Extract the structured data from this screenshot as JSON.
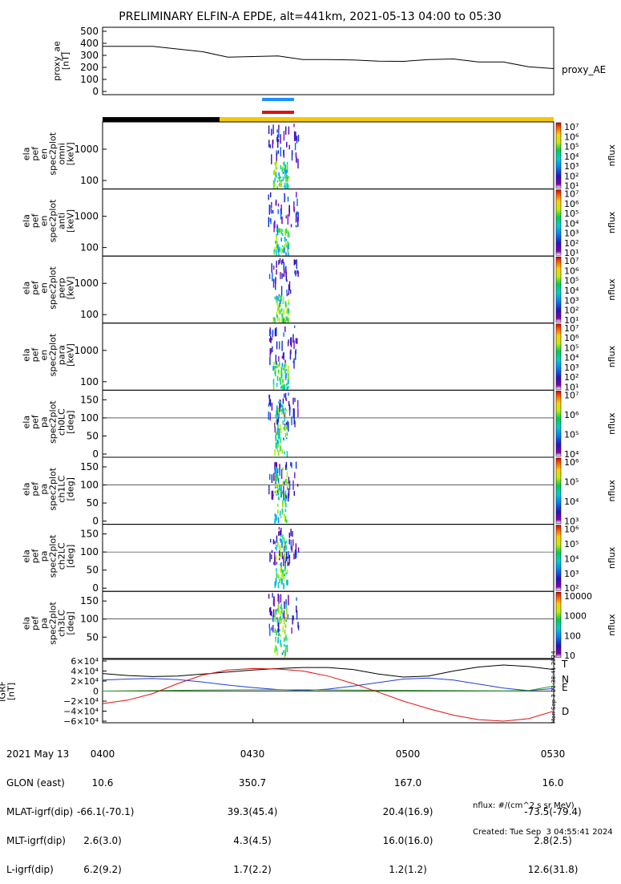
{
  "title": "PRELIMINARY ELFIN-A EPDE, alt=441km, 2021-05-13 04:00 to 05:30",
  "ae_panel": {
    "ylabel_lines": [
      "proxy_ae",
      "[nT]"
    ],
    "yticks": [
      "500",
      "400",
      "300",
      "200",
      "100",
      "0"
    ],
    "series_label": "proxy_AE"
  },
  "colors": {
    "bar_blue": "#1e90ff",
    "bar_red": "#e01010",
    "bar_black": "#000000",
    "bar_yellow": "#f5c800",
    "bfield_T": "#000000",
    "bfield_N": "#1f3fd0",
    "bfield_E": "#2ca02c",
    "bfield_D": "#e01010"
  },
  "spec_panels": [
    {
      "lines": [
        "ela",
        "pef",
        "en",
        "spec2plot",
        "omni",
        "[keV]"
      ],
      "yticks": [
        "1000",
        "100"
      ],
      "cbar": [
        "10⁷",
        "10⁶",
        "10⁵",
        "10⁴",
        "10³",
        "10²",
        "10¹"
      ],
      "unit": "nflux"
    },
    {
      "lines": [
        "ela",
        "pef",
        "en",
        "spec2plot",
        "anti",
        "[keV]"
      ],
      "yticks": [
        "1000",
        "100"
      ],
      "cbar": [
        "10⁷",
        "10⁶",
        "10⁵",
        "10⁴",
        "10³",
        "10²",
        "10¹"
      ],
      "unit": "nflux"
    },
    {
      "lines": [
        "ela",
        "pef",
        "en",
        "spec2plot",
        "perp",
        "[keV]"
      ],
      "yticks": [
        "1000",
        "100"
      ],
      "cbar": [
        "10⁷",
        "10⁶",
        "10⁵",
        "10⁴",
        "10³",
        "10²",
        "10¹"
      ],
      "unit": "nflux"
    },
    {
      "lines": [
        "ela",
        "pef",
        "en",
        "spec2plot",
        "para",
        "[keV]"
      ],
      "yticks": [
        "1000",
        "100"
      ],
      "cbar": [
        "10⁷",
        "10⁶",
        "10⁵",
        "10⁴",
        "10³",
        "10²",
        "10¹"
      ],
      "unit": "nflux"
    },
    {
      "lines": [
        "ela",
        "pef",
        "pa",
        "spec2plot",
        "ch0LC",
        "[deg]"
      ],
      "yticks": [
        "150",
        "100",
        "50",
        "0"
      ],
      "cbar": [
        "10⁷",
        "10⁶",
        "10⁵",
        "10⁴"
      ],
      "unit": "nflux"
    },
    {
      "lines": [
        "ela",
        "pef",
        "pa",
        "spec2plot",
        "ch1LC",
        "[deg]"
      ],
      "yticks": [
        "150",
        "100",
        "50",
        "0"
      ],
      "cbar": [
        "10⁶",
        "10⁵",
        "10⁴",
        "10³"
      ],
      "unit": "nflux"
    },
    {
      "lines": [
        "ela",
        "pef",
        "pa",
        "spec2plot",
        "ch2LC",
        "[deg]"
      ],
      "yticks": [
        "150",
        "100",
        "50",
        "0"
      ],
      "cbar": [
        "10⁶",
        "10⁵",
        "10⁴",
        "10³",
        "10²"
      ],
      "unit": "nflux"
    },
    {
      "lines": [
        "ela",
        "pef",
        "pa",
        "spec2plot",
        "ch3LC",
        "[deg]"
      ],
      "yticks": [
        "150",
        "100",
        "50"
      ],
      "cbar": [
        "10000",
        "1000",
        "100",
        "10"
      ],
      "unit": "nflux"
    }
  ],
  "bfield_panel": {
    "ylabel_lines": [
      "IGRF",
      "[nT]"
    ],
    "yticks": [
      "6×10⁴",
      "4×10⁴",
      "2×10⁴",
      "0",
      "−2×10⁴",
      "−4×10⁴",
      "−6×10⁴"
    ],
    "legend": [
      "T",
      "N",
      "E",
      "D"
    ],
    "side_text": "Mon Sep  3 21:38:41 2024"
  },
  "footer": {
    "rows": [
      [
        "2021 May 13",
        "0400",
        "0430",
        "0500",
        "0530"
      ],
      [
        "GLON (east)",
        "10.6",
        "350.7",
        "167.0",
        "16.0"
      ],
      [
        "MLAT-igrf(dip)",
        "-66.1(-70.1)",
        "39.3(45.4)",
        "20.4(16.9)",
        "-73.5(-79.4)"
      ],
      [
        "MLT-igrf(dip)",
        "2.6(3.0)",
        "4.3(4.5)",
        "16.0(16.0)",
        "2.8(2.5)"
      ],
      [
        "L-igrf(dip)",
        "6.2(9.2)",
        "1.7(2.2)",
        "1.2(1.2)",
        "12.6(31.8)"
      ]
    ],
    "nflux_note": "nflux: #/(cm^2 s sr MeV)",
    "created": "Created: Tue Sep  3 04:55:41 2024"
  },
  "chart_data": {
    "type": "line",
    "title": "PRELIMINARY ELFIN-A EPDE, alt=441km, 2021-05-13 04:00 to 05:30",
    "x_ticks": [
      "0400",
      "0430",
      "0500",
      "0530"
    ],
    "panels": [
      {
        "name": "proxy_AE",
        "ylabel": "proxy_ae [nT]",
        "ylim": [
          0,
          520
        ],
        "series": [
          {
            "name": "proxy_AE",
            "x_min": [
              0,
              10,
              20,
              25,
              30,
              35,
              40,
              45,
              50,
              55,
              60,
              65,
              70,
              75,
              80,
              85,
              90
            ],
            "values": [
              375,
              375,
              330,
              285,
              290,
              295,
              265,
              265,
              262,
              252,
              250,
              265,
              270,
              245,
              245,
              205,
              190
            ]
          }
        ]
      },
      {
        "name": "IGRF",
        "ylabel": "IGRF [nT]",
        "ylim": [
          -60000,
          60000
        ],
        "series": [
          {
            "name": "T",
            "x_min": [
              0,
              5,
              10,
              15,
              20,
              25,
              30,
              35,
              40,
              45,
              50,
              55,
              60,
              65,
              70,
              75,
              80,
              85,
              90
            ],
            "values": [
              35000,
              31000,
              29000,
              30000,
              34000,
              38000,
              42000,
              45000,
              47000,
              47000,
              43000,
              34000,
              28000,
              30000,
              40000,
              48000,
              52000,
              49000,
              43000
            ]
          },
          {
            "name": "N",
            "x_min": [
              0,
              5,
              10,
              15,
              20,
              25,
              30,
              35,
              40,
              45,
              50,
              55,
              60,
              65,
              70,
              75,
              80,
              85,
              90
            ],
            "values": [
              22000,
              24000,
              25000,
              23000,
              18000,
              12000,
              7000,
              3000,
              1000,
              4000,
              10000,
              17000,
              24000,
              26000,
              22000,
              14000,
              6000,
              1000,
              5000
            ]
          },
          {
            "name": "E",
            "x_min": [
              0,
              10,
              20,
              30,
              40,
              50,
              60,
              70,
              80,
              85,
              90
            ],
            "values": [
              0,
              1000,
              2000,
              2500,
              2500,
              2000,
              1500,
              1000,
              500,
              1000,
              10000
            ]
          },
          {
            "name": "D",
            "x_min": [
              0,
              5,
              10,
              15,
              20,
              25,
              30,
              35,
              40,
              45,
              50,
              55,
              60,
              65,
              70,
              75,
              80,
              85,
              90
            ],
            "values": [
              -25000,
              -18000,
              -5000,
              15000,
              32000,
              42000,
              45000,
              44000,
              40000,
              30000,
              15000,
              -2000,
              -20000,
              -35000,
              -48000,
              -57000,
              -60000,
              -55000,
              -40000
            ]
          }
        ]
      }
    ],
    "spectrogram_panels": [
      "omni",
      "anti",
      "perp",
      "para",
      "ch0LC",
      "ch1LC",
      "ch2LC",
      "ch3LC"
    ],
    "activity_window_min": [
      33,
      39
    ],
    "colorbar_unit": "nflux"
  }
}
